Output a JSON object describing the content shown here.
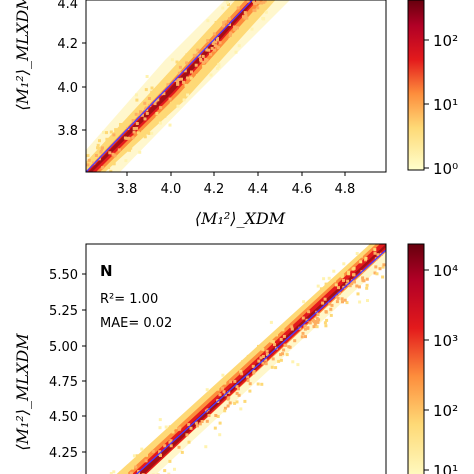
{
  "chart_data": [
    {
      "type": "heatmap",
      "subtype": "hexbin-density-parity",
      "ylabel": "⟨M₁²⟩_MLXDM",
      "xlabel": "⟨M₁²⟩_XDM",
      "xlim": [
        3.62,
        4.98
      ],
      "ylim": [
        3.62,
        4.48
      ],
      "x_ticks": [
        "3.8",
        "4.0",
        "4.2",
        "4.4",
        "4.6",
        "4.8"
      ],
      "y_ticks": [
        "3.8",
        "4.0",
        "4.2",
        "4.4"
      ],
      "identity_line": true,
      "colorbar": {
        "scale": "log",
        "ticks": [
          "10⁰",
          "10¹",
          "10²"
        ],
        "colormap": "YlOrRd"
      }
    },
    {
      "type": "heatmap",
      "subtype": "hexbin-density-parity",
      "panel_label": "N",
      "r2_label": "R²= 1.00",
      "mae_label": "MAE= 0.02",
      "ylabel": "⟨M₁²⟩_MLXDM",
      "xlim": [
        4.07,
        5.68
      ],
      "ylim": [
        4.07,
        5.68
      ],
      "y_ticks": [
        "4.25",
        "4.50",
        "4.75",
        "5.00",
        "5.25",
        "5.50"
      ],
      "identity_line": true,
      "colorbar": {
        "scale": "log",
        "ticks": [
          "10¹",
          "10²",
          "10³",
          "10⁴"
        ],
        "colormap": "YlOrRd"
      }
    }
  ]
}
